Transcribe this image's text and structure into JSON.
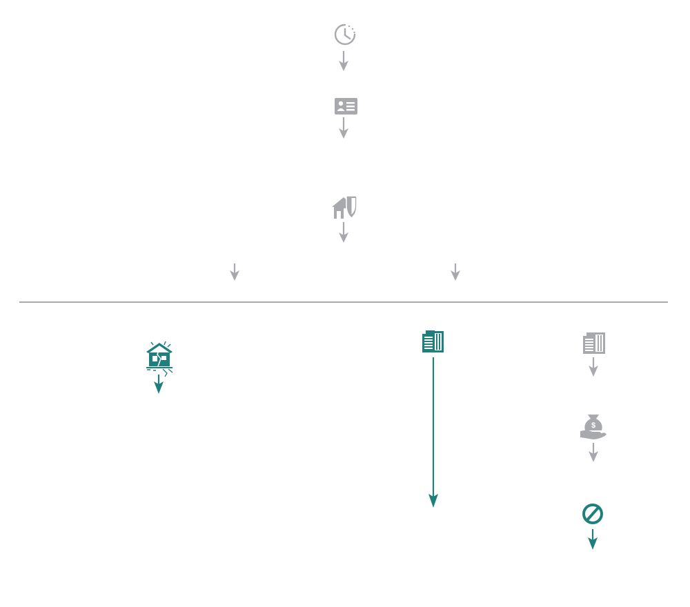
{
  "colors": {
    "gray": "#a7a9ac",
    "teal": "#1f7f7d",
    "divider": "#8c8c8c",
    "background": "#ffffff"
  },
  "flow": {
    "steps": [
      {
        "id": "clock",
        "icon": "clock-icon",
        "color": "gray"
      },
      {
        "id": "id-card",
        "icon": "id-card-icon",
        "color": "gray"
      },
      {
        "id": "house-shield",
        "icon": "house-shield-icon",
        "color": "gray"
      }
    ],
    "branches": [
      {
        "id": "left-branch",
        "color": "gray"
      },
      {
        "id": "right-branch",
        "color": "gray"
      }
    ],
    "outcomes": [
      {
        "id": "damaged-house",
        "icon": "damaged-house-icon",
        "color": "teal"
      },
      {
        "id": "document-teal",
        "icon": "document-icon",
        "color": "teal"
      },
      {
        "id": "document-gray",
        "icon": "document-icon",
        "color": "gray"
      },
      {
        "id": "money-bag-hand",
        "icon": "money-bag-hand-icon",
        "color": "gray",
        "symbol": "$"
      },
      {
        "id": "prohibited",
        "icon": "prohibited-icon",
        "color": "teal"
      }
    ]
  }
}
